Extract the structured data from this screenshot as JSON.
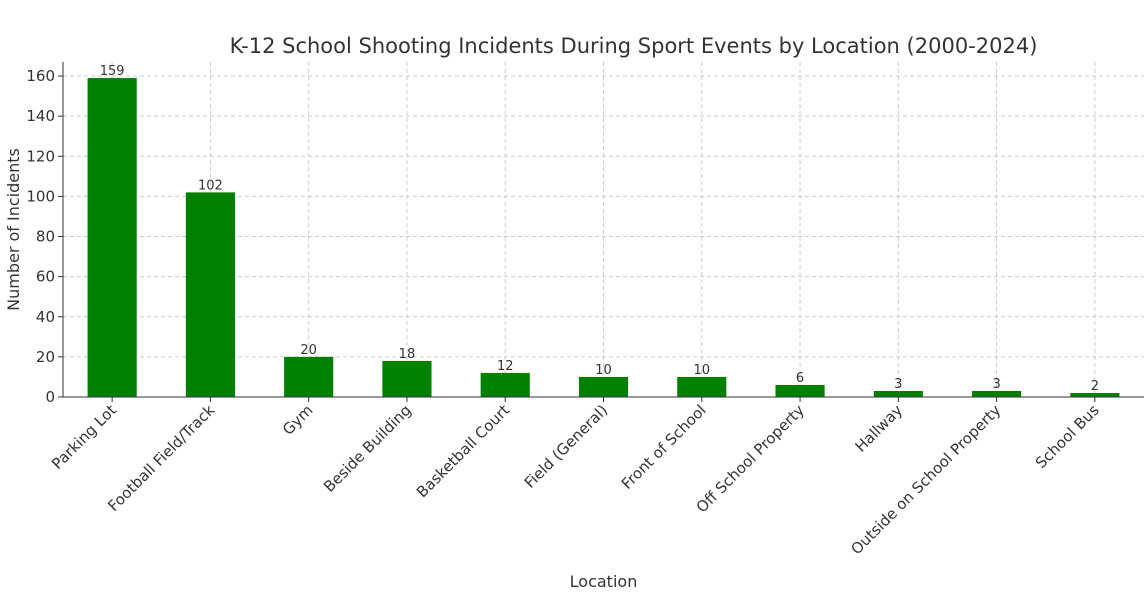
{
  "chart_data": {
    "type": "bar",
    "title": "K-12 School Shooting Incidents During Sport Events by Location (2000-2024)",
    "xlabel": "Location",
    "ylabel": "Number of Incidents",
    "categories": [
      "Parking Lot",
      "Football Field/Track",
      "Gym",
      "Beside Building",
      "Basketball Court",
      "Field (General)",
      "Front of School",
      "Off School Property",
      "Hallway",
      "Outside on School Property",
      "School Bus"
    ],
    "values": [
      159,
      102,
      20,
      18,
      12,
      10,
      10,
      6,
      3,
      3,
      2
    ],
    "ylim": [
      0,
      167
    ],
    "yticks": [
      0,
      20,
      40,
      60,
      80,
      100,
      120,
      140,
      160
    ],
    "grid": true,
    "bar_color": "#008000",
    "data_labels": true
  }
}
